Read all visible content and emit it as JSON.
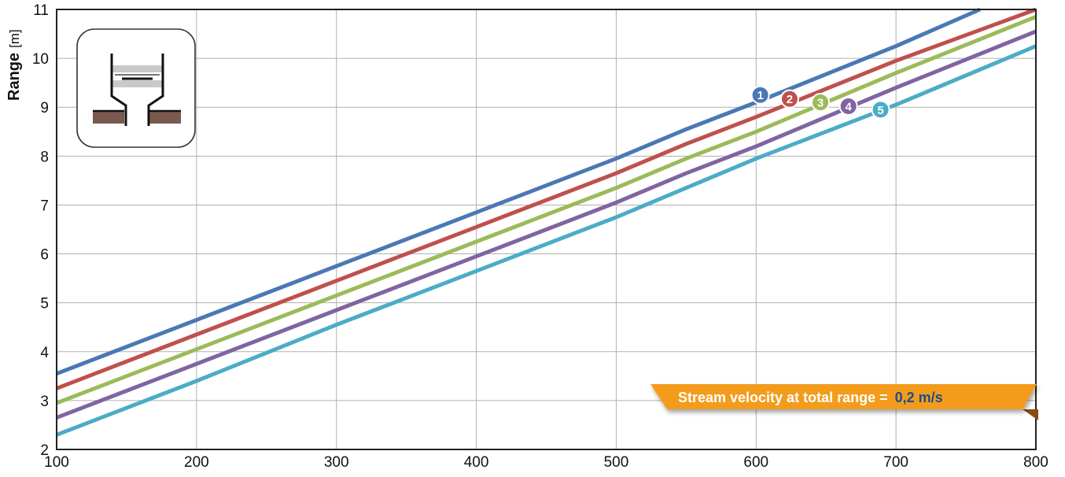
{
  "chart_data": {
    "type": "line",
    "ylabel": "Range",
    "yunit": "[m]",
    "xlim": [
      100,
      800
    ],
    "ylim": [
      2,
      11
    ],
    "xticks": [
      "100",
      "200",
      "300",
      "400",
      "500",
      "600",
      "700",
      "800"
    ],
    "yticks": [
      "2",
      "3",
      "4",
      "5",
      "6",
      "7",
      "8",
      "9",
      "10",
      "11"
    ],
    "grid": true,
    "series": [
      {
        "name": "1",
        "color": "#4a78b5",
        "x": [
          100,
          200,
          300,
          400,
          500,
          550,
          600,
          700,
          760
        ],
        "y": [
          3.55,
          4.65,
          5.75,
          6.85,
          7.95,
          8.55,
          9.1,
          10.25,
          11.0
        ]
      },
      {
        "name": "2",
        "color": "#c0504d",
        "x": [
          100,
          200,
          300,
          400,
          500,
          550,
          600,
          700,
          800
        ],
        "y": [
          3.25,
          4.35,
          5.45,
          6.55,
          7.65,
          8.25,
          8.8,
          9.95,
          11.0
        ]
      },
      {
        "name": "3",
        "color": "#9bbb59",
        "x": [
          100,
          200,
          300,
          400,
          500,
          550,
          600,
          700,
          800
        ],
        "y": [
          2.95,
          4.05,
          5.15,
          6.25,
          7.35,
          7.95,
          8.5,
          9.7,
          10.85
        ]
      },
      {
        "name": "4",
        "color": "#8064a2",
        "x": [
          100,
          200,
          300,
          400,
          500,
          550,
          600,
          700,
          800
        ],
        "y": [
          2.65,
          3.75,
          4.85,
          5.95,
          7.05,
          7.65,
          8.2,
          9.4,
          10.55
        ]
      },
      {
        "name": "5",
        "color": "#4bacc6",
        "x": [
          100,
          200,
          300,
          400,
          500,
          550,
          600,
          700,
          800
        ],
        "y": [
          2.3,
          3.4,
          4.55,
          5.65,
          6.75,
          7.35,
          7.95,
          9.05,
          10.25
        ]
      }
    ],
    "markers": [
      {
        "label": "1",
        "x": 603,
        "y": 9.25
      },
      {
        "label": "2",
        "x": 624,
        "y": 9.17
      },
      {
        "label": "3",
        "x": 646,
        "y": 9.1
      },
      {
        "label": "4",
        "x": 666,
        "y": 9.02
      },
      {
        "label": "5",
        "x": 689,
        "y": 8.95
      }
    ],
    "annotation": {
      "text": "Stream velocity at total range = ",
      "value": "0,2 m/s"
    }
  },
  "colors": {
    "banner": "#f39c1f",
    "banner_value": "#1b4f8a",
    "grid": "#b0b0b0",
    "ground": "#7a5a4e"
  },
  "inset_icon": "channel-profile-icon"
}
